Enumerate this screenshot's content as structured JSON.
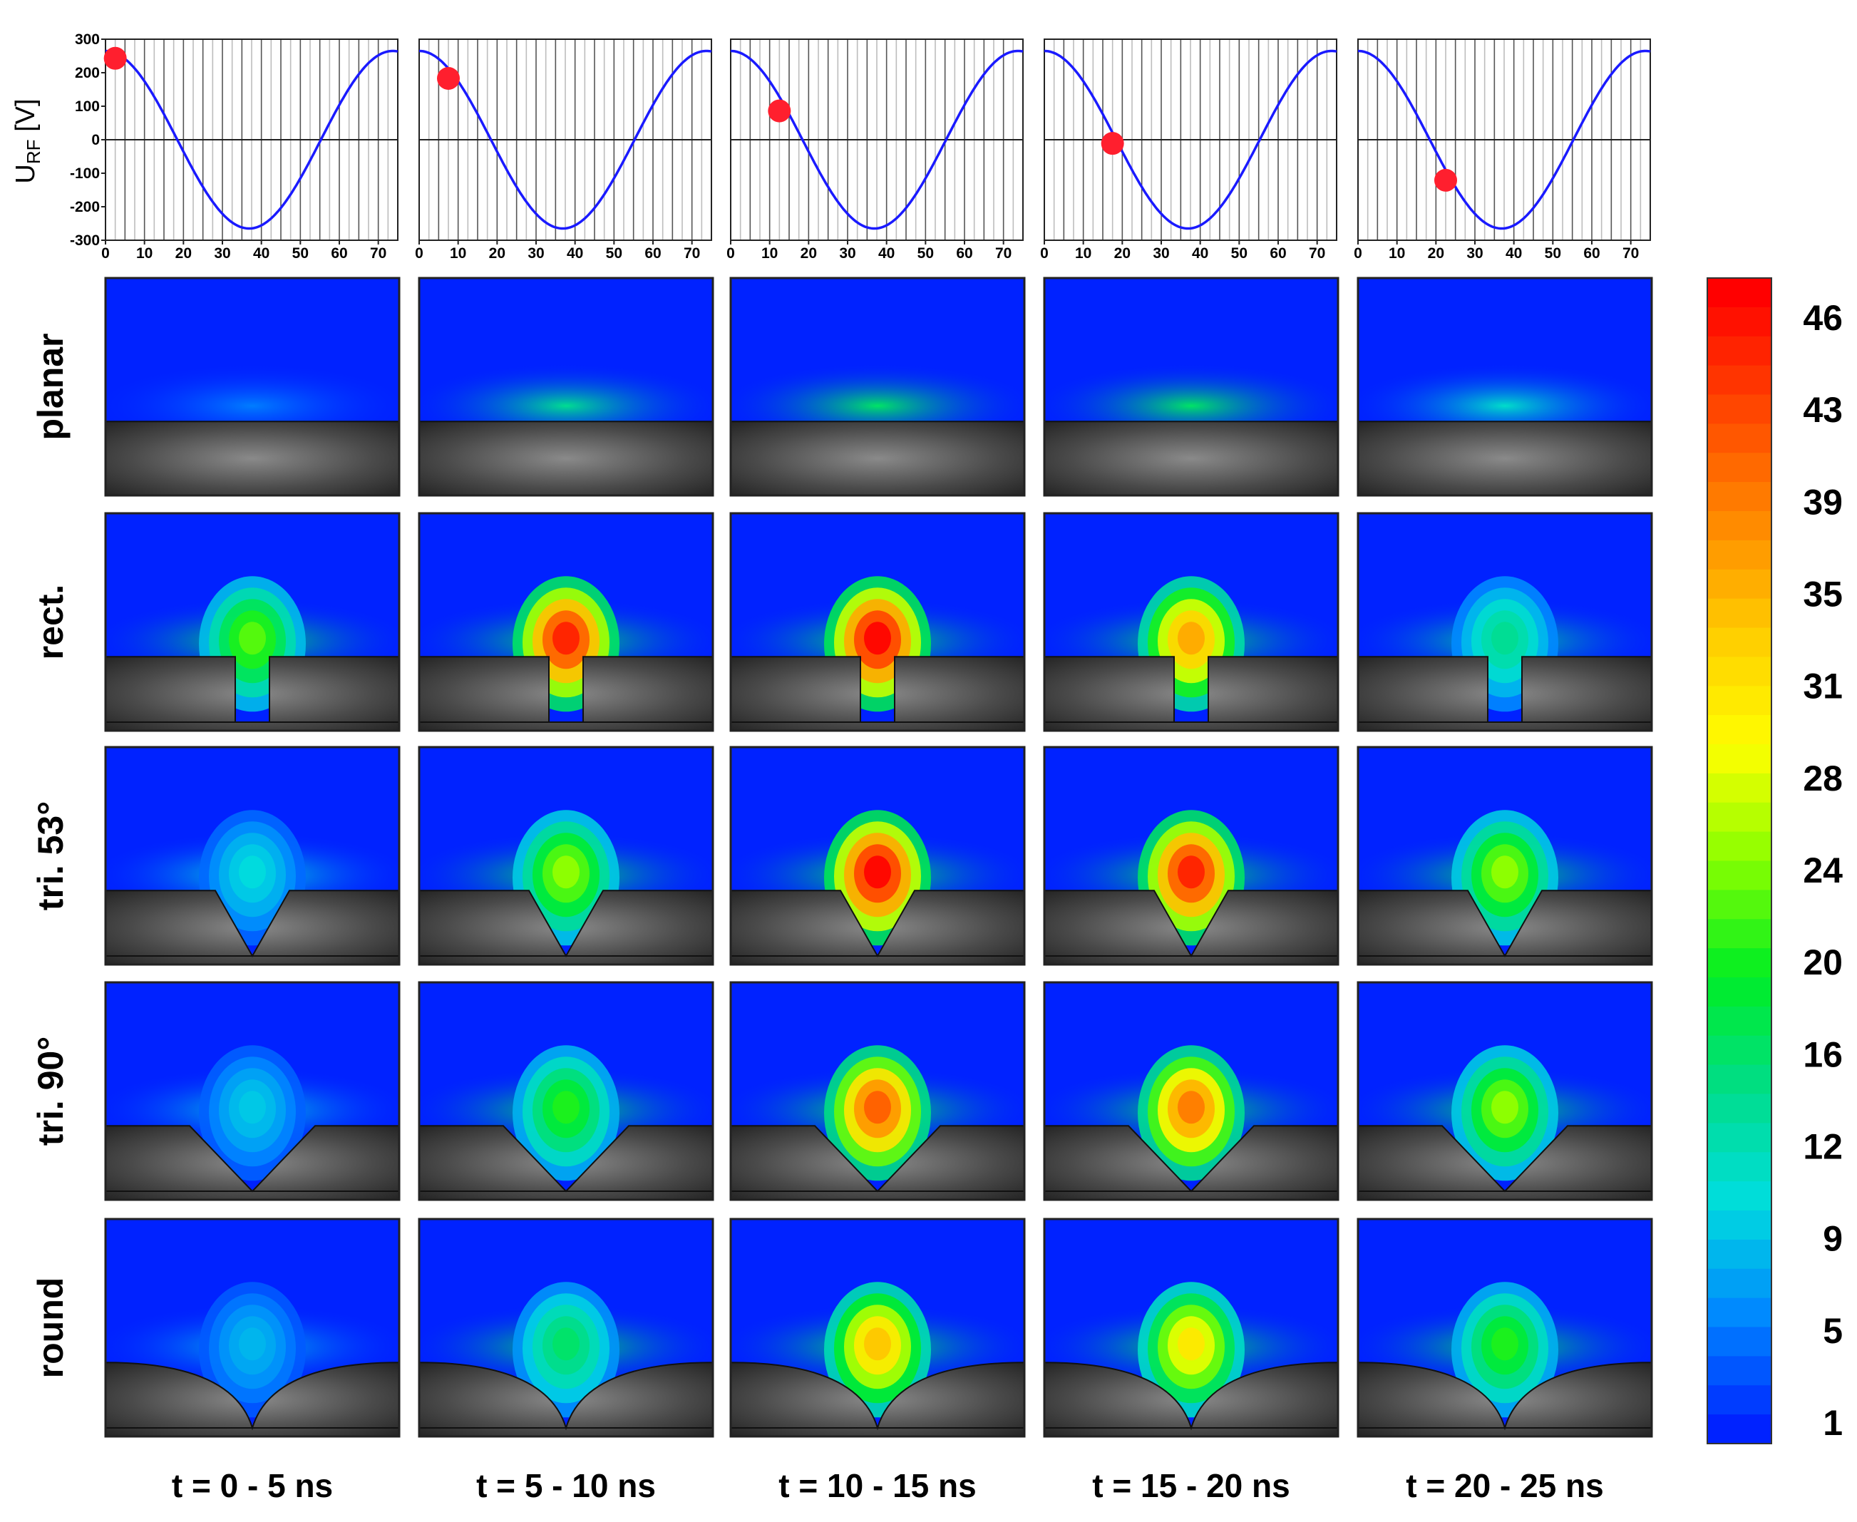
{
  "chart_data": {
    "type": "heatmap",
    "waveform": {
      "type": "line",
      "ylabel": "U",
      "ylabel_subscript": "RF",
      "ylabel_unit": "[V]",
      "xlim": [
        0,
        75
      ],
      "ylim": [
        -300,
        300
      ],
      "xticks": [
        "0",
        "10",
        "20",
        "30",
        "40",
        "50",
        "60",
        "70"
      ],
      "yticks": [
        "300",
        "200",
        "100",
        "0",
        "-100",
        "-200",
        "-300"
      ],
      "amplitude": 265,
      "period_ns": 73.7,
      "phase_note": "cosine",
      "marker_times_ns": [
        2.5,
        7.5,
        12.5,
        17.5,
        22.5
      ],
      "marker_values_V": [
        243,
        183,
        86,
        -11,
        -121
      ]
    },
    "rows": [
      "planar",
      "rect.",
      "tri. 53°",
      "tri. 90°",
      "round"
    ],
    "columns": [
      "t = 0 - 5 ns",
      "t = 5 - 10 ns",
      "t = 10 - 15 ns",
      "t = 15 - 20 ns",
      "t = 20 - 25 ns"
    ],
    "peak_intensity": [
      [
        5,
        14,
        18,
        16,
        11
      ],
      [
        22,
        44,
        46,
        35,
        14
      ],
      [
        10,
        24,
        46,
        44,
        24
      ],
      [
        9,
        20,
        40,
        38,
        24
      ],
      [
        8,
        16,
        33,
        30,
        20
      ]
    ],
    "colorbar": {
      "ticks": [
        "46",
        "43",
        "39",
        "35",
        "31",
        "28",
        "24",
        "20",
        "16",
        "12",
        "9",
        "5",
        "1"
      ],
      "range": [
        1,
        46
      ],
      "colors": [
        "#ff0000",
        "#ff4400",
        "#ff8800",
        "#ffcc00",
        "#ffff00",
        "#88ff00",
        "#00ee22",
        "#00dd88",
        "#00dddd",
        "#0088ff",
        "#0022ff"
      ]
    }
  }
}
